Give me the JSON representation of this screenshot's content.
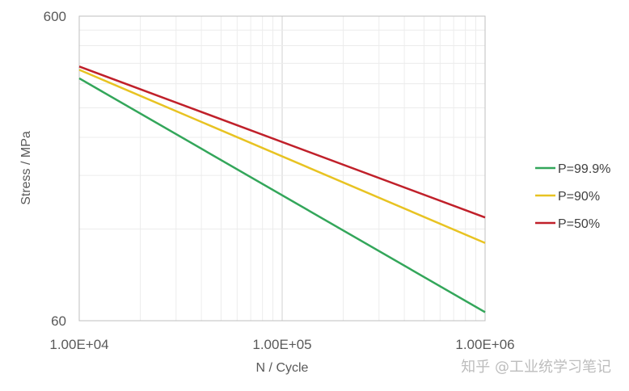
{
  "chart_data": {
    "type": "line",
    "title": "",
    "xlabel": "N / Cycle",
    "ylabel": "Stress / MPa",
    "x_scale": "log",
    "y_scale": "log",
    "xlim": [
      10000,
      1000000
    ],
    "ylim": [
      60,
      600
    ],
    "x_ticks": [
      "1.00E+04",
      "1.00E+05",
      "1.00E+06"
    ],
    "y_ticks": [
      "600",
      "60"
    ],
    "grid": true,
    "legend_position": "right",
    "x": [
      10000,
      1000000
    ],
    "series": [
      {
        "name": "P=99.9%",
        "color": "#33a65a",
        "values": [
          375,
          64
        ]
      },
      {
        "name": "P=90%",
        "color": "#e8c322",
        "values": [
          400,
          108
        ]
      },
      {
        "name": "P=50%",
        "color": "#c0202a",
        "values": [
          410,
          131
        ]
      }
    ]
  },
  "watermark": "知乎 @工业统学习笔记"
}
